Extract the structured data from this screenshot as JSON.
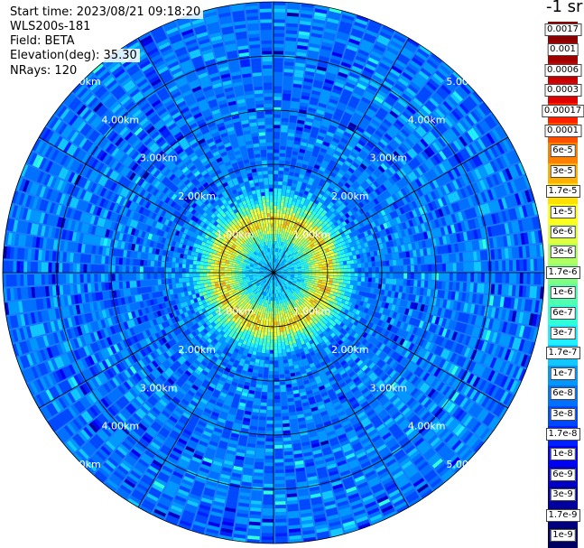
{
  "info": {
    "start_time": "Start time: 2023/08/21 09:18:20",
    "instrument": "WLS200s-181",
    "field": "Field: BETA",
    "elevation": "Elevation(deg): 35.30",
    "nrays": "NRays: 120"
  },
  "colorbar": {
    "unit_label": "-1 sr",
    "labels": [
      "0.0017",
      "0.001",
      "0.0006",
      "0.0003",
      "0.00017",
      "0.0001",
      "6e-5",
      "3e-5",
      "1.7e-5",
      "1e-5",
      "6e-6",
      "3e-6",
      "1.7e-6",
      "1e-6",
      "6e-7",
      "3e-7",
      "1.7e-7",
      "1e-7",
      "6e-8",
      "3e-8",
      "1.7e-8",
      "1e-8",
      "6e-9",
      "3e-9",
      "1.7e-9",
      "1e-9"
    ],
    "colors": [
      "#8b0000",
      "#a00000",
      "#c80000",
      "#e00000",
      "#ff2000",
      "#ff5000",
      "#ff8000",
      "#ffb000",
      "#ffe000",
      "#ffff20",
      "#e0ff40",
      "#b0ff60",
      "#80ff80",
      "#50ffb0",
      "#30ffd8",
      "#20f0ff",
      "#10c8ff",
      "#0098ff",
      "#0070ff",
      "#0048ff",
      "#0020ff",
      "#0000f0",
      "#0000c8",
      "#0000a0",
      "#000080",
      "#000060"
    ]
  },
  "range_rings": {
    "labels": [
      "1.00km",
      "2.00km",
      "3.00km",
      "4.00km",
      "5.00km"
    ]
  },
  "chart_data": {
    "type": "ppi",
    "field": "BETA",
    "elevation_deg": 35.3,
    "nrays": 120,
    "range_km_max": 5.0,
    "ring_km": [
      1,
      2,
      3,
      4,
      5
    ],
    "radial_profile": [
      {
        "range_km": 0.0,
        "value": 1.7e-07
      },
      {
        "range_km": 0.5,
        "value": 3e-07
      },
      {
        "range_km": 0.85,
        "value": 1e-05
      },
      {
        "range_km": 1.05,
        "value": 1.7e-05
      },
      {
        "range_km": 1.25,
        "value": 1e-06
      },
      {
        "range_km": 1.6,
        "value": 1e-07
      },
      {
        "range_km": 2.0,
        "value": 6e-08
      },
      {
        "range_km": 3.0,
        "value": 6e-08
      },
      {
        "range_km": 4.0,
        "value": 6e-08
      },
      {
        "range_km": 5.0,
        "value": 6e-08
      }
    ]
  }
}
